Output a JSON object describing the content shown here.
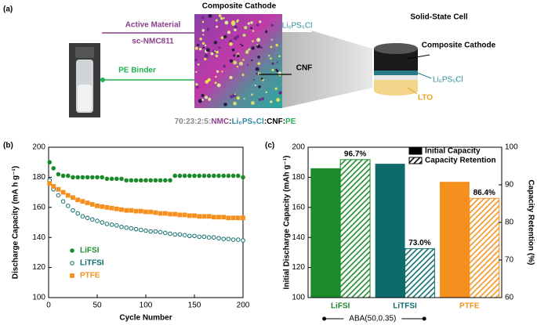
{
  "panel_a": {
    "label": "(a)",
    "cathode_title": "Composite Cathode",
    "cell_title": "Solid-State Cell",
    "active_material": "Active Material",
    "nmc": "sc-NMC811",
    "binder": "PE Binder",
    "electrolyte": "Li₆PS₅Cl",
    "cnf": "CNF",
    "cell_labels": [
      "Composite Cathode",
      "Li₆PS₅Cl",
      "LTO"
    ],
    "ratio": [
      "70:23:2:5:",
      "NMC",
      ":",
      "Li₆PS₅Cl",
      ":CNF:",
      "PE"
    ]
  },
  "chart_data": [
    {
      "type": "scatter",
      "panel": "(b)",
      "xlabel": "Cycle Number",
      "ylabel": "Discharge Capacity (mA h g⁻¹)",
      "xlim": [
        0,
        200
      ],
      "ylim": [
        100,
        200
      ],
      "xticks": [
        0,
        50,
        100,
        150,
        200
      ],
      "yticks": [
        100,
        120,
        140,
        160,
        180,
        200
      ],
      "legend": "lower left",
      "x": [
        1,
        5,
        10,
        15,
        20,
        25,
        30,
        35,
        40,
        45,
        50,
        55,
        60,
        65,
        70,
        75,
        80,
        85,
        90,
        95,
        100,
        105,
        110,
        115,
        120,
        125,
        130,
        135,
        140,
        145,
        150,
        155,
        160,
        165,
        170,
        175,
        180,
        185,
        190,
        195,
        200
      ],
      "series": [
        {
          "name": "LiFSI",
          "color": "#1a8a2a",
          "marker": "circle",
          "filled": true,
          "values": [
            190,
            186,
            182,
            181,
            181,
            180,
            180,
            180,
            180,
            180,
            180,
            180,
            179,
            179,
            179,
            179,
            178,
            178,
            178,
            178,
            178,
            178,
            178,
            178,
            178,
            178,
            181,
            181,
            181,
            181,
            181,
            181,
            181,
            181,
            181,
            181,
            181,
            181,
            181,
            181,
            180
          ]
        },
        {
          "name": "LiTFSI",
          "color": "#0e6b6b",
          "marker": "circle",
          "filled": false,
          "values": [
            178,
            172,
            168,
            164,
            161,
            158,
            156,
            154,
            153,
            152,
            151,
            150,
            149,
            148.5,
            148,
            147,
            146.5,
            146,
            145.5,
            145,
            144.5,
            144,
            144,
            143.5,
            143,
            142.5,
            142,
            142,
            141.5,
            141,
            141,
            140.5,
            140.5,
            140,
            140,
            139.5,
            139,
            139,
            138.5,
            138.5,
            138
          ]
        },
        {
          "name": "PTFE",
          "color": "#f5901e",
          "marker": "square",
          "filled": true,
          "values": [
            176,
            174,
            172,
            170,
            168,
            166.5,
            165,
            164,
            163,
            162,
            161,
            160.5,
            160,
            159.5,
            159,
            158.5,
            158,
            158,
            157.5,
            157.5,
            157,
            157,
            156.5,
            156,
            156,
            155.5,
            155.5,
            155,
            155,
            154.5,
            154.5,
            154,
            154,
            154,
            153.5,
            153.5,
            153.5,
            153,
            153,
            153,
            153
          ]
        }
      ]
    },
    {
      "type": "bar",
      "panel": "(c)",
      "ylabel": "Initial Discharge Capacity (mAh g⁻¹)",
      "y2label": "Capacity Retention (%)",
      "categories": [
        "LiFSI",
        "LiTFSI",
        "PTFE"
      ],
      "colors": [
        "#1a8a2a",
        "#0e6b6b",
        "#f5901e"
      ],
      "ylim": [
        100,
        200
      ],
      "yticks": [
        100,
        120,
        140,
        160,
        180,
        200
      ],
      "y2lim": [
        60,
        100
      ],
      "y2ticks": [
        60,
        70,
        80,
        90,
        100
      ],
      "legend": "upper right",
      "annotation": "ABA(50,0.35)",
      "series": [
        {
          "name": "Initial Capacity",
          "color": "#000000",
          "hatch": false,
          "values": [
            186,
            189,
            177
          ]
        },
        {
          "name": "Capacity Retention",
          "color": "#000000",
          "hatch": true,
          "axis": "y2",
          "values": [
            96.7,
            73.0,
            86.4
          ],
          "value_labels": [
            "96.7%",
            "73.0%",
            "86.4%"
          ]
        }
      ]
    }
  ]
}
